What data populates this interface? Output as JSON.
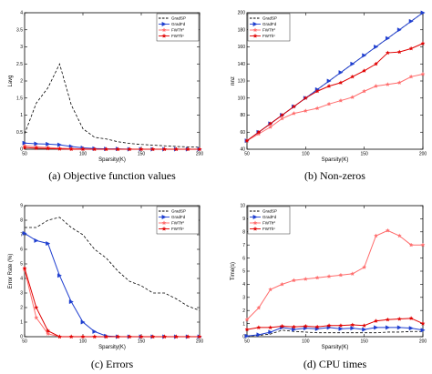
{
  "figure_captions": [
    "(a) Objective function values",
    "(b) Non-zeros",
    "(c) Errors",
    "(d) CPU times"
  ],
  "chart_data": [
    {
      "type": "line",
      "caption": "(a) Objective function values",
      "xlabel": "Sparsity(K)",
      "ylabel": "Lavg",
      "xlim": [
        50,
        200
      ],
      "ylim": [
        0,
        4
      ],
      "xticks": [
        50,
        100,
        150,
        200
      ],
      "yticks": [
        0,
        0.5,
        1,
        1.5,
        2,
        2.5,
        3,
        3.5,
        4
      ],
      "xtick_labels": [
        "50",
        "100",
        "150",
        "200"
      ],
      "ytick_labels": [
        "0",
        "0.5",
        "1",
        "1.5",
        "2",
        "2.5",
        "3",
        "3.5",
        "4"
      ],
      "legend_position": "top-right",
      "series": [
        {
          "name": "GradSP",
          "color": "#000000",
          "dash": "dashed",
          "marker": "none",
          "x": [
            50,
            60,
            70,
            80,
            90,
            100,
            110,
            120,
            130,
            140,
            150,
            160,
            170,
            180,
            190,
            200
          ],
          "y": [
            0.45,
            1.35,
            1.8,
            2.5,
            1.3,
            0.6,
            0.35,
            0.3,
            0.22,
            0.17,
            0.14,
            0.12,
            0.1,
            0.08,
            0.07,
            0.06
          ]
        },
        {
          "name": "GradFd",
          "color": "#1f3fd0",
          "dash": "solid",
          "marker": "triangle",
          "x": [
            50,
            60,
            70,
            80,
            90,
            100,
            110,
            120,
            130,
            140,
            150,
            160,
            170,
            180,
            190,
            200
          ],
          "y": [
            0.18,
            0.16,
            0.15,
            0.13,
            0.08,
            0.04,
            0.02,
            0.01,
            0.01,
            0.0,
            0.0,
            0.0,
            0.0,
            0.0,
            0.0,
            0.0
          ]
        },
        {
          "name": "FWTh⁰",
          "color": "#ff6b6b",
          "dash": "solid",
          "marker": "star",
          "x": [
            50,
            60,
            70,
            80,
            90,
            100,
            110,
            120,
            130,
            140,
            150,
            160,
            170,
            180,
            190,
            200
          ],
          "y": [
            0.1,
            0.07,
            0.05,
            0.03,
            0.02,
            0.01,
            0.0,
            0.0,
            0.0,
            0.0,
            0.0,
            0.0,
            0.0,
            0.0,
            0.0,
            0.0
          ]
        },
        {
          "name": "FWTh¹",
          "color": "#e00000",
          "dash": "solid",
          "marker": "star",
          "x": [
            50,
            60,
            70,
            80,
            90,
            100,
            110,
            120,
            130,
            140,
            150,
            160,
            170,
            180,
            190,
            200
          ],
          "y": [
            0.05,
            0.03,
            0.02,
            0.01,
            0.0,
            0.0,
            0.0,
            0.0,
            0.0,
            0.0,
            0.0,
            0.0,
            0.0,
            0.0,
            0.0,
            0.0
          ]
        }
      ]
    },
    {
      "type": "line",
      "caption": "(b) Non-zeros",
      "xlabel": "Sparsity(K)",
      "ylabel": "nnz",
      "xlim": [
        50,
        200
      ],
      "ylim": [
        40,
        200
      ],
      "xticks": [
        50,
        100,
        150,
        200
      ],
      "yticks": [
        40,
        60,
        80,
        100,
        120,
        140,
        160,
        180,
        200
      ],
      "xtick_labels": [
        "50",
        "100",
        "150",
        "200"
      ],
      "ytick_labels": [
        "40",
        "60",
        "80",
        "100",
        "120",
        "140",
        "160",
        "180",
        "200"
      ],
      "legend_position": "top-left",
      "series": [
        {
          "name": "GradSP",
          "color": "#000000",
          "dash": "dashed",
          "marker": "none",
          "x": [
            50,
            60,
            70,
            80,
            90,
            100,
            110,
            120,
            130,
            140,
            150,
            160,
            170,
            180,
            190,
            200
          ],
          "y": [
            50,
            60,
            70,
            80,
            90,
            100,
            110,
            120,
            130,
            140,
            150,
            160,
            170,
            180,
            190,
            200
          ]
        },
        {
          "name": "GradFd",
          "color": "#1f3fd0",
          "dash": "solid",
          "marker": "triangle",
          "x": [
            50,
            60,
            70,
            80,
            90,
            100,
            110,
            120,
            130,
            140,
            150,
            160,
            170,
            180,
            190,
            200
          ],
          "y": [
            50,
            60,
            70,
            80,
            90,
            100,
            110,
            120,
            130,
            140,
            150,
            160,
            170,
            180,
            190,
            200
          ]
        },
        {
          "name": "FWTh⁰",
          "color": "#ff6b6b",
          "dash": "solid",
          "marker": "star",
          "x": [
            50,
            60,
            70,
            80,
            90,
            100,
            110,
            120,
            130,
            140,
            150,
            160,
            170,
            180,
            190,
            200
          ],
          "y": [
            50,
            58,
            66,
            76,
            82,
            85,
            88,
            93,
            97,
            101,
            108,
            114,
            116,
            118,
            125,
            128
          ]
        },
        {
          "name": "FWTh¹",
          "color": "#e00000",
          "dash": "solid",
          "marker": "star",
          "x": [
            50,
            60,
            70,
            80,
            90,
            100,
            110,
            120,
            130,
            140,
            150,
            160,
            170,
            180,
            190,
            200
          ],
          "y": [
            50,
            60,
            70,
            80,
            90,
            100,
            108,
            114,
            118,
            125,
            132,
            140,
            153,
            154,
            158,
            164
          ]
        }
      ]
    },
    {
      "type": "line",
      "caption": "(c) Errors",
      "xlabel": "Sparsity(K)",
      "ylabel": "Error Rate (%)",
      "xlim": [
        50,
        200
      ],
      "ylim": [
        0,
        9
      ],
      "xticks": [
        50,
        100,
        150,
        200
      ],
      "yticks": [
        0,
        1,
        2,
        3,
        4,
        5,
        6,
        7,
        8,
        9
      ],
      "xtick_labels": [
        "50",
        "100",
        "150",
        "200"
      ],
      "ytick_labels": [
        "0",
        "1",
        "2",
        "3",
        "4",
        "5",
        "6",
        "7",
        "8",
        "9"
      ],
      "legend_position": "top-right",
      "series": [
        {
          "name": "GradSP",
          "color": "#000000",
          "dash": "dashed",
          "marker": "none",
          "x": [
            50,
            60,
            70,
            80,
            90,
            100,
            110,
            120,
            130,
            140,
            150,
            160,
            170,
            180,
            190,
            200
          ],
          "y": [
            7.5,
            7.5,
            8.0,
            8.2,
            7.5,
            7.0,
            6.0,
            5.4,
            4.5,
            3.8,
            3.5,
            3.0,
            3.0,
            2.6,
            2.1,
            1.8
          ]
        },
        {
          "name": "GradFd",
          "color": "#1f3fd0",
          "dash": "solid",
          "marker": "triangle",
          "x": [
            50,
            60,
            70,
            80,
            90,
            100,
            110,
            120,
            130,
            140,
            150,
            160,
            170,
            180,
            190,
            200
          ],
          "y": [
            7.1,
            6.6,
            6.4,
            4.2,
            2.4,
            1.0,
            0.35,
            0.05,
            0.0,
            0.0,
            0.0,
            0.0,
            0.0,
            0.0,
            0.0,
            0.0
          ]
        },
        {
          "name": "FWTh⁰",
          "color": "#ff6b6b",
          "dash": "solid",
          "marker": "star",
          "x": [
            50,
            60,
            70,
            80,
            90,
            100,
            110,
            120,
            130,
            140,
            150,
            160,
            170,
            180,
            190,
            200
          ],
          "y": [
            4.6,
            1.3,
            0.2,
            0.0,
            0.0,
            0.0,
            0.0,
            0.0,
            0.0,
            0.0,
            0.0,
            0.0,
            0.0,
            0.0,
            0.0,
            0.0
          ]
        },
        {
          "name": "FWTh¹",
          "color": "#e00000",
          "dash": "solid",
          "marker": "star",
          "x": [
            50,
            60,
            70,
            80,
            90,
            100,
            110,
            120,
            130,
            140,
            150,
            160,
            170,
            180,
            190,
            200
          ],
          "y": [
            4.7,
            2.0,
            0.4,
            0.0,
            0.0,
            0.0,
            0.0,
            0.0,
            0.0,
            0.0,
            0.0,
            0.0,
            0.0,
            0.0,
            0.0,
            0.0
          ]
        }
      ]
    },
    {
      "type": "line",
      "caption": "(d) CPU times",
      "xlabel": "Sparsity(K)",
      "ylabel": "Time(s)",
      "xlim": [
        50,
        200
      ],
      "ylim": [
        0,
        10
      ],
      "xticks": [
        50,
        100,
        150,
        200
      ],
      "yticks": [
        0,
        1,
        2,
        3,
        4,
        5,
        6,
        7,
        8,
        9,
        10
      ],
      "xtick_labels": [
        "50",
        "100",
        "150",
        "200"
      ],
      "ytick_labels": [
        "0",
        "1",
        "2",
        "3",
        "4",
        "5",
        "6",
        "7",
        "8",
        "9",
        "10"
      ],
      "legend_position": "top-left",
      "series": [
        {
          "name": "GradSP",
          "color": "#000000",
          "dash": "dashed",
          "marker": "none",
          "x": [
            50,
            60,
            70,
            80,
            90,
            100,
            110,
            120,
            130,
            140,
            150,
            160,
            170,
            180,
            190,
            200
          ],
          "y": [
            0.05,
            0.1,
            0.2,
            0.5,
            0.4,
            0.35,
            0.3,
            0.3,
            0.3,
            0.3,
            0.3,
            0.3,
            0.35,
            0.35,
            0.4,
            0.4
          ]
        },
        {
          "name": "GradFd",
          "color": "#1f3fd0",
          "dash": "solid",
          "marker": "triangle",
          "x": [
            50,
            60,
            70,
            80,
            90,
            100,
            110,
            120,
            130,
            140,
            150,
            160,
            170,
            180,
            190,
            200
          ],
          "y": [
            0.05,
            0.15,
            0.35,
            0.7,
            0.55,
            0.65,
            0.6,
            0.7,
            0.6,
            0.65,
            0.55,
            0.7,
            0.7,
            0.7,
            0.65,
            0.5
          ]
        },
        {
          "name": "FWTh⁰",
          "color": "#ff6b6b",
          "dash": "solid",
          "marker": "star",
          "x": [
            50,
            60,
            70,
            80,
            90,
            100,
            110,
            120,
            130,
            140,
            150,
            160,
            170,
            180,
            190,
            200
          ],
          "y": [
            1.3,
            2.2,
            3.6,
            4.0,
            4.3,
            4.4,
            4.5,
            4.6,
            4.7,
            4.8,
            5.3,
            7.7,
            8.1,
            7.7,
            7.0,
            7.0
          ]
        },
        {
          "name": "FWTh¹",
          "color": "#e00000",
          "dash": "solid",
          "marker": "star",
          "x": [
            50,
            60,
            70,
            80,
            90,
            100,
            110,
            120,
            130,
            140,
            150,
            160,
            170,
            180,
            190,
            200
          ],
          "y": [
            0.55,
            0.7,
            0.7,
            0.8,
            0.75,
            0.8,
            0.75,
            0.85,
            0.85,
            0.9,
            0.85,
            1.2,
            1.3,
            1.35,
            1.4,
            1.0
          ]
        }
      ]
    }
  ]
}
